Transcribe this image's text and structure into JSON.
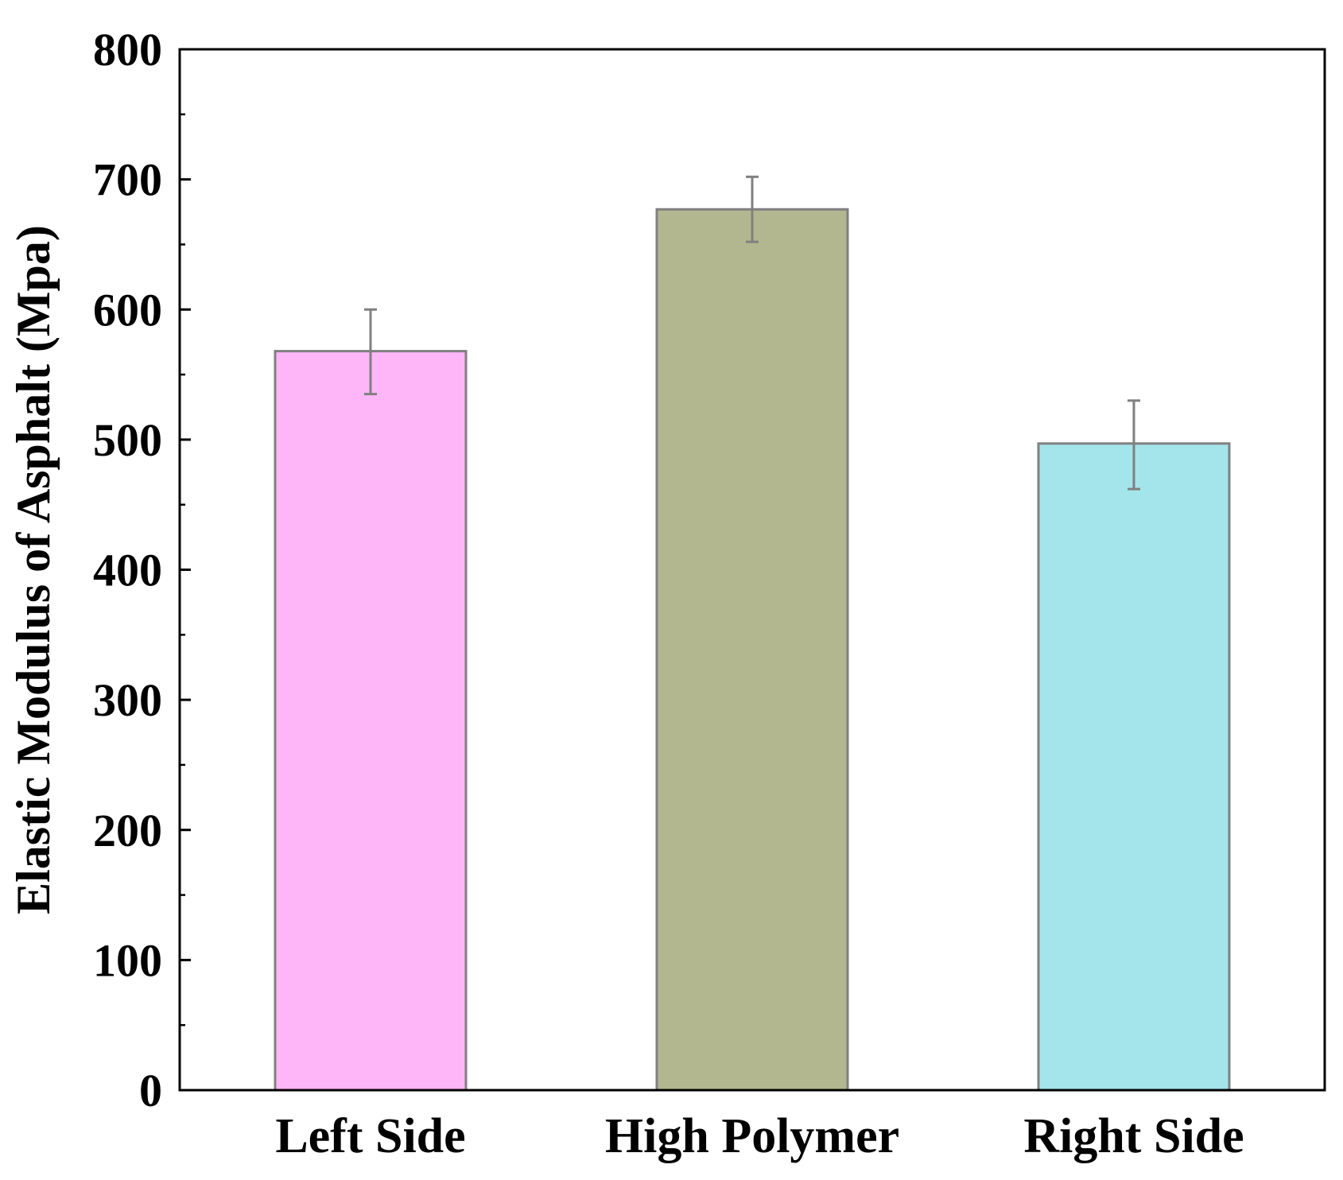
{
  "chart_data": {
    "type": "bar",
    "categories": [
      "Left Side",
      "High Polymer",
      "Right Side"
    ],
    "values": [
      568,
      677,
      497
    ],
    "error_bars": [
      {
        "low": 535,
        "high": 600
      },
      {
        "low": 652,
        "high": 702
      },
      {
        "low": 462,
        "high": 530
      }
    ],
    "colors": [
      "#FFB6F8",
      "#B2B78F",
      "#A3E5EB"
    ],
    "edge_color": "#808080",
    "error_color": "#808080",
    "title": "",
    "xlabel": "",
    "ylabel": "Elastic Modulus of Asphalt (Mpa)",
    "ylim": [
      0,
      800
    ],
    "yticks": [
      0,
      100,
      200,
      300,
      400,
      500,
      600,
      700,
      800
    ],
    "ytick_labels": [
      "0",
      "100",
      "200",
      "300",
      "400",
      "500",
      "600",
      "700",
      "800"
    ],
    "minor_y_step": 50,
    "grid": false,
    "legend": "none"
  }
}
